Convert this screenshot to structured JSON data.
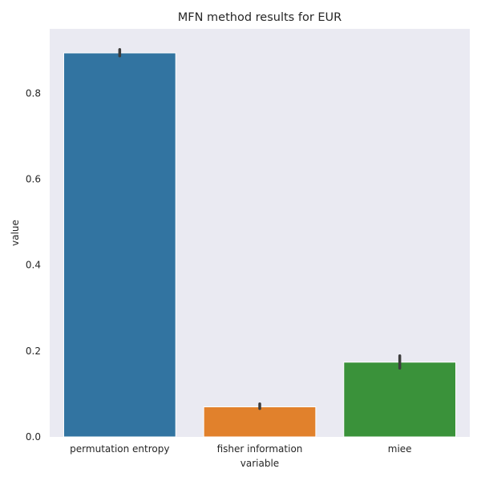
{
  "chart_data": {
    "type": "bar",
    "title": "MFN method results for EUR",
    "xlabel": "variable",
    "ylabel": "value",
    "categories": [
      "permutation entropy",
      "fisher information",
      "miee"
    ],
    "values": [
      0.894,
      0.07,
      0.174
    ],
    "error_bars": [
      [
        0.887,
        0.902
      ],
      [
        0.066,
        0.077
      ],
      [
        0.16,
        0.189
      ]
    ],
    "colors": [
      "#3274a1",
      "#e1812c",
      "#3a923a"
    ],
    "ylim": [
      0,
      0.95
    ],
    "yticks": [
      0.0,
      0.2,
      0.4,
      0.6,
      0.8
    ],
    "ytick_labels": [
      "0.0",
      "0.2",
      "0.4",
      "0.6",
      "0.8"
    ],
    "grid": false,
    "background": "#eaeaf2"
  }
}
